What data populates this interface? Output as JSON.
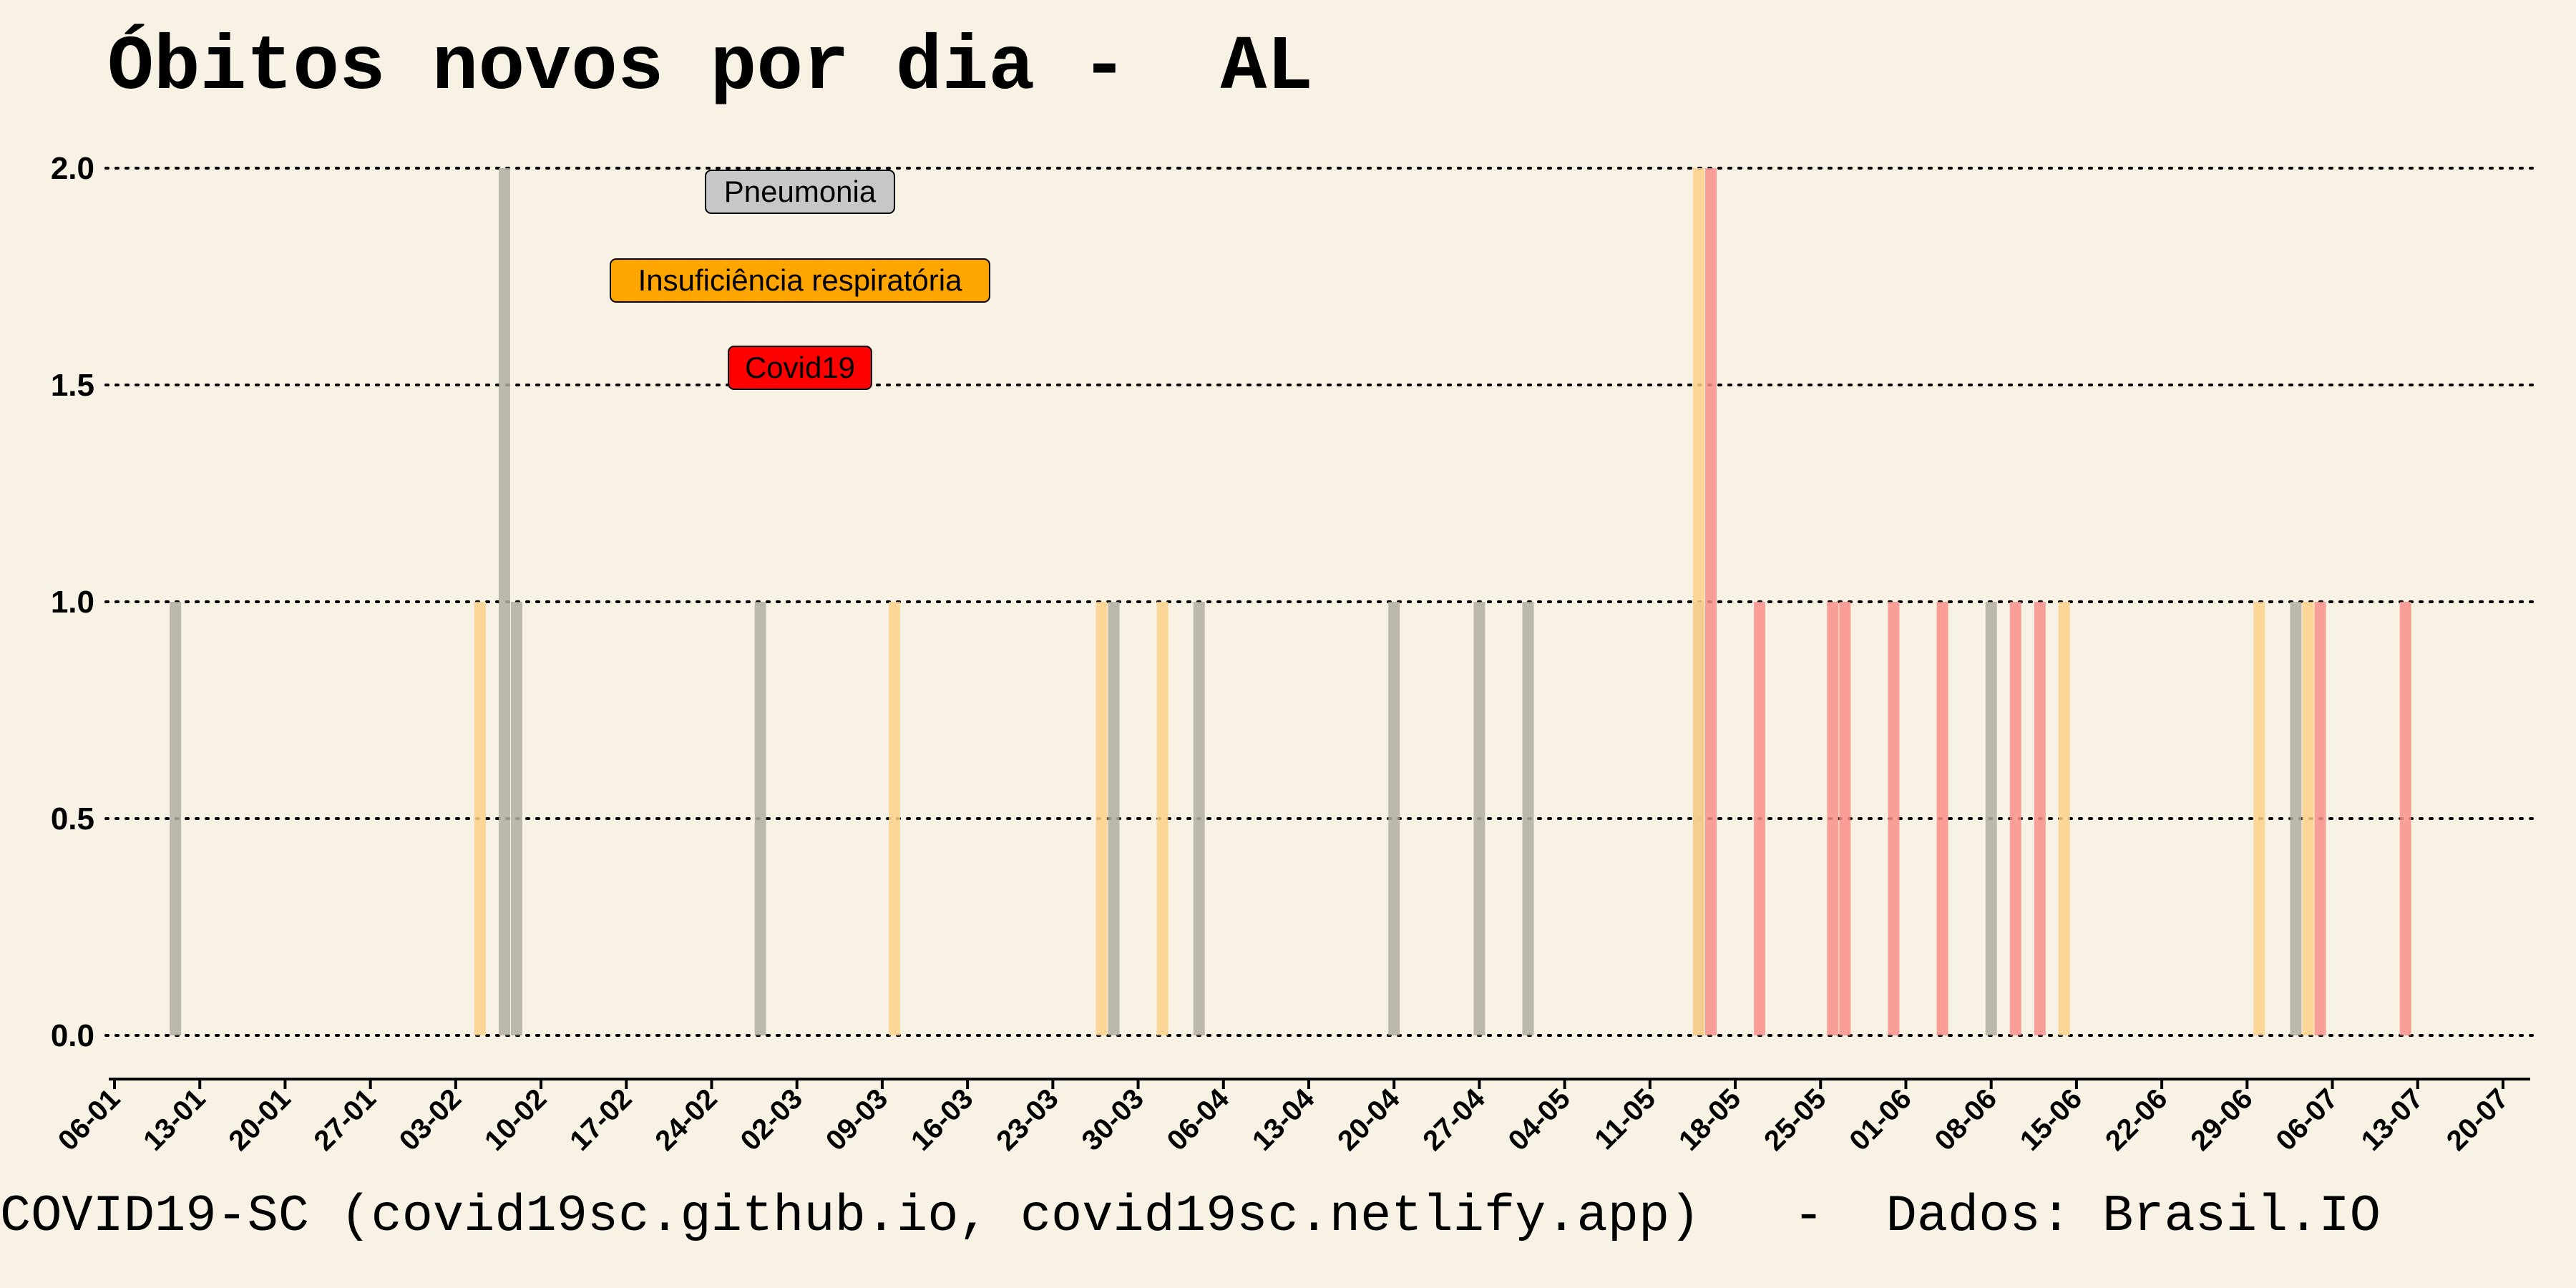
{
  "title": "Óbitos novos por dia -  AL",
  "footer": "COVID19-SC (covid19sc.github.io, covid19sc.netlify.app)   -  Dados: Brasil.IO",
  "colors": {
    "background": "#f8f2e4",
    "Pneumonia": "#b1aea2",
    "Insuficiência respiratória": "#fdd189",
    "Covid19": "#f9918a",
    "Pneumonia_box": "#c7c7c7",
    "Insuficiência respiratória_box": "#ffa500",
    "Covid19_box": "#ff0000"
  },
  "chart_data": {
    "type": "bar",
    "x_type": "date",
    "year": 2020,
    "xlim": [
      "2020-01-06",
      "2020-07-21"
    ],
    "x_ticks": [
      "06-01",
      "13-01",
      "20-01",
      "27-01",
      "03-02",
      "10-02",
      "17-02",
      "24-02",
      "02-03",
      "09-03",
      "16-03",
      "23-03",
      "30-03",
      "06-04",
      "13-04",
      "20-04",
      "27-04",
      "04-05",
      "11-05",
      "18-05",
      "25-05",
      "01-06",
      "08-06",
      "15-06",
      "22-06",
      "29-06",
      "06-07",
      "13-07",
      "20-07"
    ],
    "ylim": [
      0,
      2
    ],
    "y_ticks": [
      "0.0",
      "0.5",
      "1.0",
      "1.5",
      "2.0"
    ],
    "grid": "horizontal-dotted",
    "legend_placement": "top-left",
    "legend": [
      "Pneumonia",
      "Insuficiência respiratória",
      "Covid19"
    ],
    "series": [
      {
        "name": "Pneumonia",
        "points": [
          {
            "x": "2020-01-11",
            "y": 1
          },
          {
            "x": "2020-02-07",
            "y": 2
          },
          {
            "x": "2020-02-08",
            "y": 1
          },
          {
            "x": "2020-02-28",
            "y": 1
          },
          {
            "x": "2020-03-28",
            "y": 1
          },
          {
            "x": "2020-04-04",
            "y": 1
          },
          {
            "x": "2020-04-20",
            "y": 1
          },
          {
            "x": "2020-04-27",
            "y": 1
          },
          {
            "x": "2020-05-01",
            "y": 1
          },
          {
            "x": "2020-05-15",
            "y": 1
          },
          {
            "x": "2020-06-08",
            "y": 1
          },
          {
            "x": "2020-07-03",
            "y": 1
          }
        ]
      },
      {
        "name": "Insuficiência respiratória",
        "points": [
          {
            "x": "2020-02-05",
            "y": 1
          },
          {
            "x": "2020-03-10",
            "y": 1
          },
          {
            "x": "2020-03-27",
            "y": 1
          },
          {
            "x": "2020-04-01",
            "y": 1
          },
          {
            "x": "2020-05-15",
            "y": 2
          },
          {
            "x": "2020-06-14",
            "y": 1
          },
          {
            "x": "2020-06-30",
            "y": 1
          },
          {
            "x": "2020-07-04",
            "y": 1
          }
        ]
      },
      {
        "name": "Covid19",
        "points": [
          {
            "x": "2020-05-16",
            "y": 2
          },
          {
            "x": "2020-05-20",
            "y": 1
          },
          {
            "x": "2020-05-26",
            "y": 1
          },
          {
            "x": "2020-05-27",
            "y": 1
          },
          {
            "x": "2020-05-31",
            "y": 1
          },
          {
            "x": "2020-06-04",
            "y": 1
          },
          {
            "x": "2020-06-10",
            "y": 1
          },
          {
            "x": "2020-06-12",
            "y": 1
          },
          {
            "x": "2020-07-05",
            "y": 1
          },
          {
            "x": "2020-07-12",
            "y": 1
          }
        ]
      }
    ]
  }
}
